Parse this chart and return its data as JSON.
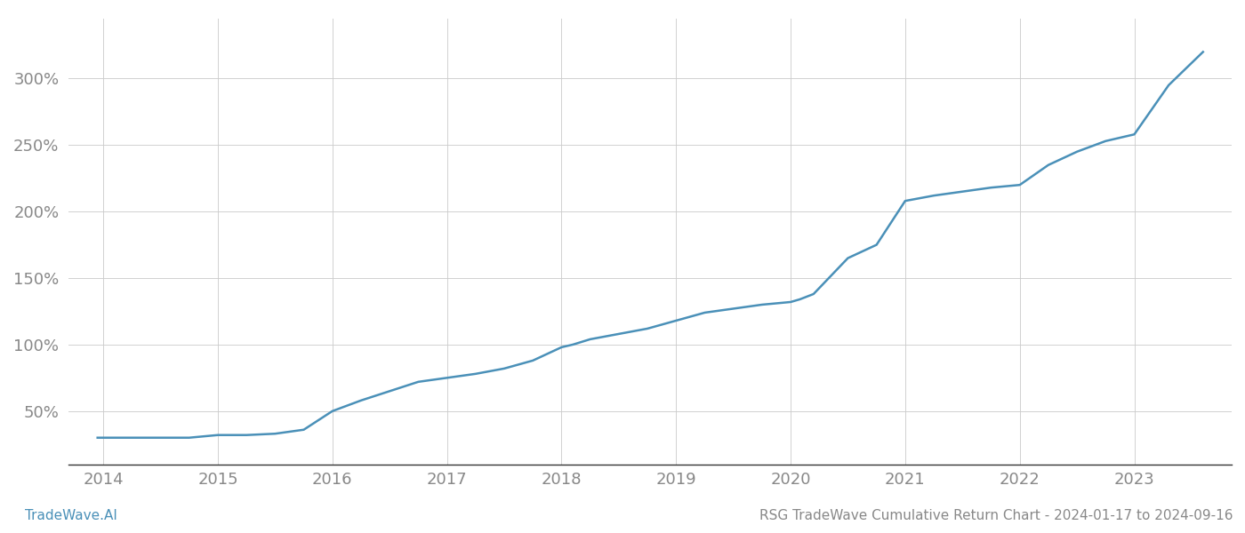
{
  "title": "RSG TradeWave Cumulative Return Chart - 2024-01-17 to 2024-09-16",
  "watermark": "TradeWave.AI",
  "line_color": "#4a90b8",
  "line_width": 1.8,
  "background_color": "#ffffff",
  "grid_color": "#cccccc",
  "x_years": [
    2013.95,
    2014.0,
    2014.25,
    2014.5,
    2014.75,
    2015.0,
    2015.25,
    2015.5,
    2015.75,
    2016.0,
    2016.25,
    2016.5,
    2016.75,
    2017.0,
    2017.25,
    2017.5,
    2017.75,
    2018.0,
    2018.1,
    2018.25,
    2018.5,
    2018.75,
    2019.0,
    2019.25,
    2019.5,
    2019.75,
    2020.0,
    2020.08,
    2020.2,
    2020.5,
    2020.75,
    2021.0,
    2021.25,
    2021.5,
    2021.75,
    2022.0,
    2022.25,
    2022.5,
    2022.75,
    2023.0,
    2023.3,
    2023.6
  ],
  "y_values": [
    30,
    30,
    30,
    30,
    30,
    32,
    32,
    33,
    36,
    50,
    58,
    65,
    72,
    75,
    78,
    82,
    88,
    98,
    100,
    104,
    108,
    112,
    118,
    124,
    127,
    130,
    132,
    134,
    138,
    165,
    175,
    208,
    212,
    215,
    218,
    220,
    235,
    245,
    253,
    258,
    295,
    320
  ],
  "xlim": [
    2013.7,
    2023.85
  ],
  "ylim": [
    10,
    345
  ],
  "yticks": [
    50,
    100,
    150,
    200,
    250,
    300
  ],
  "xticks": [
    2014,
    2015,
    2016,
    2017,
    2018,
    2019,
    2020,
    2021,
    2022,
    2023
  ],
  "tick_label_color": "#888888",
  "tick_fontsize": 13,
  "footer_fontsize": 11,
  "title_fontsize": 11
}
